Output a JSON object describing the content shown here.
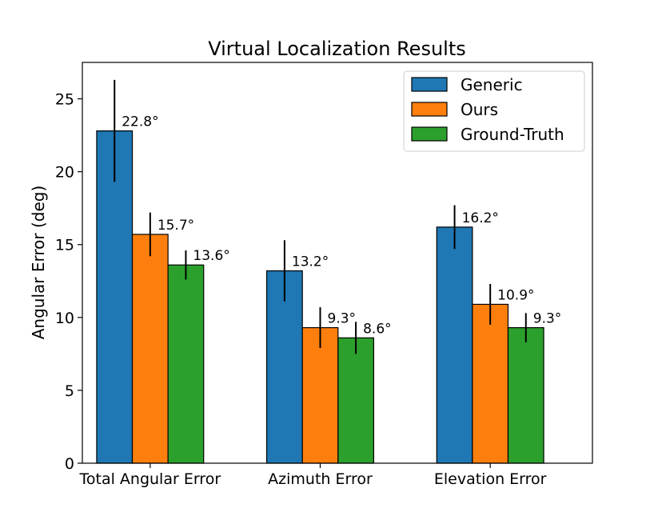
{
  "chart_data": {
    "type": "bar",
    "title": "Virtual Localization Results",
    "xlabel": "",
    "ylabel": "Angular Error (deg)",
    "ylim": [
      0,
      27.5
    ],
    "yticks": [
      0,
      5,
      10,
      15,
      20,
      25
    ],
    "categories": [
      "Total Angular Error",
      "Azimuth Error",
      "Elevation Error"
    ],
    "series": [
      {
        "name": "Generic",
        "color": "#1f77b4",
        "values": [
          22.8,
          13.2,
          16.2
        ],
        "errors": [
          3.5,
          2.1,
          1.5
        ],
        "labels": [
          "22.8°",
          "13.2°",
          "16.2°"
        ]
      },
      {
        "name": "Ours",
        "color": "#ff7f0e",
        "values": [
          15.7,
          9.3,
          10.9
        ],
        "errors": [
          1.5,
          1.4,
          1.4
        ],
        "labels": [
          "15.7°",
          "9.3°",
          "10.9°"
        ]
      },
      {
        "name": "Ground-Truth",
        "color": "#2ca02c",
        "values": [
          13.6,
          8.6,
          9.3
        ],
        "errors": [
          1.0,
          1.1,
          1.0
        ],
        "labels": [
          "13.6°",
          "8.6°",
          "9.3°"
        ]
      }
    ],
    "legend_position": "upper-right",
    "grid": false
  }
}
